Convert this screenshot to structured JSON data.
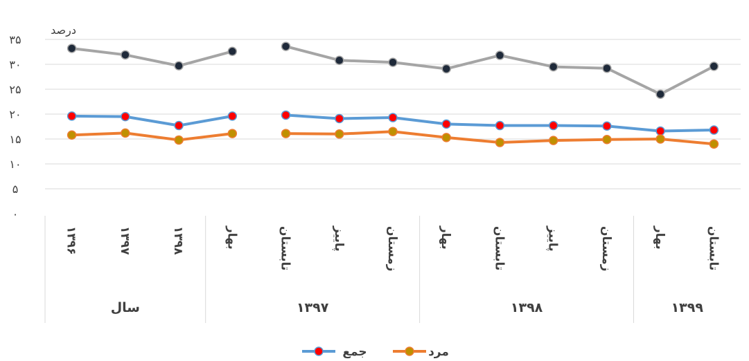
{
  "chart_data": {
    "type": "line",
    "ylabel": "درصد",
    "ylim": [
      0,
      35
    ],
    "yticks": [
      "۰",
      "۵",
      "۱۰",
      "۱۵",
      "۲۰",
      "۲۵",
      "۳۰",
      "۳۵"
    ],
    "grid": true,
    "legend_position": "bottom",
    "categories": [
      "۱۳۹۶",
      "۱۳۹۷",
      "۱۳۹۸",
      "بهار",
      "تابستان",
      "پاییز",
      "زمستان",
      "بهار",
      "تابستان",
      "پاییز",
      "زمستان",
      "بهار",
      "تابستان"
    ],
    "groups": [
      {
        "label": "سال",
        "count": 3
      },
      {
        "label": "۱۳۹۷",
        "count": 4
      },
      {
        "label": "۱۳۹۸",
        "count": 4
      },
      {
        "label": "۱۳۹۹",
        "count": 2
      }
    ],
    "series": [
      {
        "values": [
          33.2,
          31.9,
          29.7,
          32.6,
          33.6,
          30.8,
          30.4,
          29.1,
          31.8,
          29.5,
          29.2,
          24.0,
          29.6
        ],
        "color": "#a5a5a5",
        "marker": "#1f2a3a"
      },
      {
        "name": "جمع",
        "values": [
          19.6,
          19.5,
          17.7,
          19.6,
          19.8,
          19.1,
          19.3,
          18.0,
          17.7,
          17.7,
          17.6,
          16.6,
          16.8
        ],
        "color": "#5b9bd5",
        "marker": "#ff0000"
      },
      {
        "name": "مرد",
        "values": [
          15.8,
          16.2,
          14.8,
          16.1,
          16.1,
          16.0,
          16.5,
          15.3,
          14.3,
          14.7,
          14.9,
          15.0,
          14.0
        ],
        "color": "#ed7d31",
        "marker": "#bf9000"
      }
    ]
  }
}
